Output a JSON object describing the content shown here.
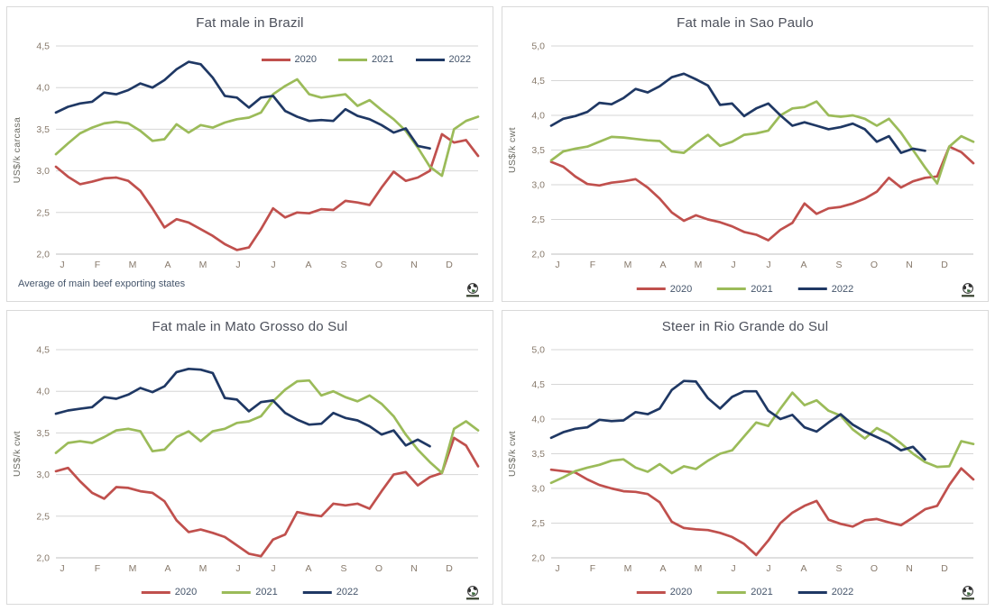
{
  "palette": {
    "s2020": "#C0504D",
    "s2021": "#9BBB59",
    "s2022": "#1F3864",
    "grid": "#D6D6D6",
    "axis": "#BFBFBF",
    "tick_text": "#87796B",
    "title_text": "#4C505B",
    "legend_text": "#44546A"
  },
  "chart_data": [
    {
      "type": "line",
      "title": "Fat male in Brazil",
      "ylabel": "US$/k carcasa",
      "footnote": "Average  of main beef exporting states",
      "categories": [
        "J",
        "F",
        "M",
        "A",
        "M",
        "J",
        "J",
        "A",
        "S",
        "O",
        "N",
        "D"
      ],
      "ylim": [
        2.0,
        4.5
      ],
      "ytick_step": 0.5,
      "grid": true,
      "decimal_separator": ",",
      "legend_position": "inside-top-right",
      "points_per_month": 3,
      "series": [
        {
          "name": "2020",
          "color_key": "s2020",
          "values": [
            3.05,
            2.93,
            2.84,
            2.87,
            2.91,
            2.92,
            2.88,
            2.76,
            2.55,
            2.32,
            2.42,
            2.38,
            2.3,
            2.22,
            2.12,
            2.05,
            2.08,
            2.3,
            2.55,
            2.44,
            2.5,
            2.49,
            2.54,
            2.53,
            2.64,
            2.62,
            2.59,
            2.8,
            2.99,
            2.88,
            2.92,
            3.0,
            3.44,
            3.34,
            3.37,
            3.18
          ]
        },
        {
          "name": "2021",
          "color_key": "s2021",
          "values": [
            3.2,
            3.33,
            3.45,
            3.52,
            3.57,
            3.59,
            3.57,
            3.48,
            3.36,
            3.38,
            3.56,
            3.46,
            3.55,
            3.52,
            3.58,
            3.62,
            3.64,
            3.7,
            3.92,
            4.02,
            4.1,
            3.92,
            3.88,
            3.9,
            3.92,
            3.78,
            3.85,
            3.73,
            3.62,
            3.48,
            3.28,
            3.05,
            2.94,
            3.5,
            3.6,
            3.65
          ]
        },
        {
          "name": "2022",
          "color_key": "s2022",
          "values": [
            3.7,
            3.77,
            3.81,
            3.83,
            3.94,
            3.92,
            3.97,
            4.05,
            4.0,
            4.09,
            4.22,
            4.31,
            4.28,
            4.12,
            3.9,
            3.88,
            3.76,
            3.88,
            3.9,
            3.72,
            3.65,
            3.6,
            3.61,
            3.6,
            3.74,
            3.66,
            3.62,
            3.55,
            3.46,
            3.51,
            3.3,
            3.27
          ]
        }
      ]
    },
    {
      "type": "line",
      "title": "Fat male in Sao Paulo",
      "ylabel": "US$/k cwt",
      "categories": [
        "J",
        "F",
        "M",
        "A",
        "M",
        "J",
        "J",
        "A",
        "S",
        "O",
        "N",
        "D"
      ],
      "ylim": [
        2.0,
        5.0
      ],
      "ytick_step": 0.5,
      "grid": true,
      "decimal_separator": ",",
      "legend_position": "bottom-center",
      "points_per_month": 3,
      "series": [
        {
          "name": "2020",
          "color_key": "s2020",
          "values": [
            3.33,
            3.26,
            3.12,
            3.01,
            2.99,
            3.03,
            3.05,
            3.08,
            2.96,
            2.8,
            2.6,
            2.48,
            2.56,
            2.5,
            2.46,
            2.4,
            2.32,
            2.28,
            2.2,
            2.35,
            2.45,
            2.73,
            2.58,
            2.66,
            2.68,
            2.73,
            2.8,
            2.9,
            3.1,
            2.96,
            3.05,
            3.1,
            3.12,
            3.55,
            3.47,
            3.31
          ]
        },
        {
          "name": "2021",
          "color_key": "s2021",
          "values": [
            3.35,
            3.48,
            3.52,
            3.55,
            3.62,
            3.69,
            3.68,
            3.66,
            3.64,
            3.63,
            3.48,
            3.46,
            3.6,
            3.72,
            3.56,
            3.62,
            3.72,
            3.74,
            3.78,
            4.0,
            4.1,
            4.12,
            4.2,
            4.0,
            3.98,
            4.0,
            3.95,
            3.85,
            3.95,
            3.75,
            3.5,
            3.25,
            3.02,
            3.55,
            3.7,
            3.62
          ]
        },
        {
          "name": "2022",
          "color_key": "s2022",
          "values": [
            3.85,
            3.95,
            3.99,
            4.05,
            4.18,
            4.16,
            4.25,
            4.38,
            4.33,
            4.42,
            4.55,
            4.6,
            4.52,
            4.43,
            4.15,
            4.17,
            3.99,
            4.1,
            4.17,
            4.0,
            3.85,
            3.9,
            3.85,
            3.8,
            3.83,
            3.88,
            3.8,
            3.62,
            3.7,
            3.46,
            3.52,
            3.49
          ]
        }
      ]
    },
    {
      "type": "line",
      "title": "Fat male in Mato Grosso do Sul",
      "ylabel": "US$/k cwt",
      "categories": [
        "J",
        "F",
        "M",
        "A",
        "M",
        "J",
        "J",
        "A",
        "S",
        "O",
        "N",
        "D"
      ],
      "ylim": [
        2.0,
        4.5
      ],
      "ytick_step": 0.5,
      "grid": true,
      "decimal_separator": ",",
      "legend_position": "bottom-center",
      "points_per_month": 3,
      "series": [
        {
          "name": "2020",
          "color_key": "s2020",
          "values": [
            3.04,
            3.08,
            2.92,
            2.78,
            2.71,
            2.85,
            2.84,
            2.8,
            2.78,
            2.68,
            2.45,
            2.31,
            2.34,
            2.3,
            2.25,
            2.15,
            2.05,
            2.02,
            2.22,
            2.28,
            2.55,
            2.52,
            2.5,
            2.65,
            2.63,
            2.65,
            2.59,
            2.8,
            3.0,
            3.03,
            2.87,
            2.97,
            3.02,
            3.44,
            3.35,
            3.1
          ]
        },
        {
          "name": "2021",
          "color_key": "s2021",
          "values": [
            3.26,
            3.38,
            3.4,
            3.38,
            3.45,
            3.53,
            3.55,
            3.52,
            3.28,
            3.3,
            3.45,
            3.52,
            3.4,
            3.52,
            3.55,
            3.62,
            3.64,
            3.7,
            3.88,
            4.02,
            4.12,
            4.13,
            3.95,
            4.0,
            3.93,
            3.88,
            3.95,
            3.85,
            3.7,
            3.48,
            3.3,
            3.15,
            3.02,
            3.55,
            3.64,
            3.53
          ]
        },
        {
          "name": "2022",
          "color_key": "s2022",
          "values": [
            3.73,
            3.77,
            3.79,
            3.81,
            3.93,
            3.91,
            3.96,
            4.04,
            3.99,
            4.06,
            4.23,
            4.27,
            4.26,
            4.22,
            3.92,
            3.9,
            3.76,
            3.87,
            3.89,
            3.74,
            3.66,
            3.6,
            3.61,
            3.74,
            3.68,
            3.65,
            3.58,
            3.48,
            3.53,
            3.35,
            3.42,
            3.34
          ]
        }
      ]
    },
    {
      "type": "line",
      "title": "Steer  in Rio Grande do Sul",
      "ylabel": "US$/k cwt",
      "categories": [
        "J",
        "F",
        "M",
        "A",
        "M",
        "J",
        "J",
        "A",
        "S",
        "O",
        "N",
        "D"
      ],
      "ylim": [
        2.0,
        5.0
      ],
      "ytick_step": 0.5,
      "grid": true,
      "decimal_separator": ",",
      "legend_position": "bottom-center",
      "points_per_month": 3,
      "series": [
        {
          "name": "2020",
          "color_key": "s2020",
          "values": [
            3.27,
            3.25,
            3.23,
            3.13,
            3.05,
            3.0,
            2.96,
            2.95,
            2.92,
            2.8,
            2.52,
            2.43,
            2.41,
            2.4,
            2.36,
            2.3,
            2.2,
            2.04,
            2.25,
            2.5,
            2.65,
            2.75,
            2.82,
            2.55,
            2.49,
            2.45,
            2.54,
            2.56,
            2.51,
            2.47,
            2.58,
            2.7,
            2.75,
            3.05,
            3.29,
            3.13
          ]
        },
        {
          "name": "2021",
          "color_key": "s2021",
          "values": [
            3.08,
            3.16,
            3.25,
            3.3,
            3.34,
            3.4,
            3.42,
            3.3,
            3.24,
            3.35,
            3.22,
            3.32,
            3.28,
            3.4,
            3.5,
            3.55,
            3.75,
            3.95,
            3.9,
            4.15,
            4.38,
            4.2,
            4.27,
            4.12,
            4.05,
            3.85,
            3.72,
            3.87,
            3.78,
            3.65,
            3.5,
            3.38,
            3.31,
            3.32,
            3.68,
            3.64
          ]
        },
        {
          "name": "2022",
          "color_key": "s2022",
          "values": [
            3.73,
            3.81,
            3.86,
            3.88,
            3.99,
            3.97,
            3.98,
            4.1,
            4.07,
            4.15,
            4.42,
            4.55,
            4.54,
            4.3,
            4.15,
            4.32,
            4.4,
            4.4,
            4.12,
            4.0,
            4.06,
            3.88,
            3.82,
            3.95,
            4.07,
            3.92,
            3.82,
            3.74,
            3.66,
            3.55,
            3.6,
            3.42
          ]
        }
      ]
    }
  ]
}
